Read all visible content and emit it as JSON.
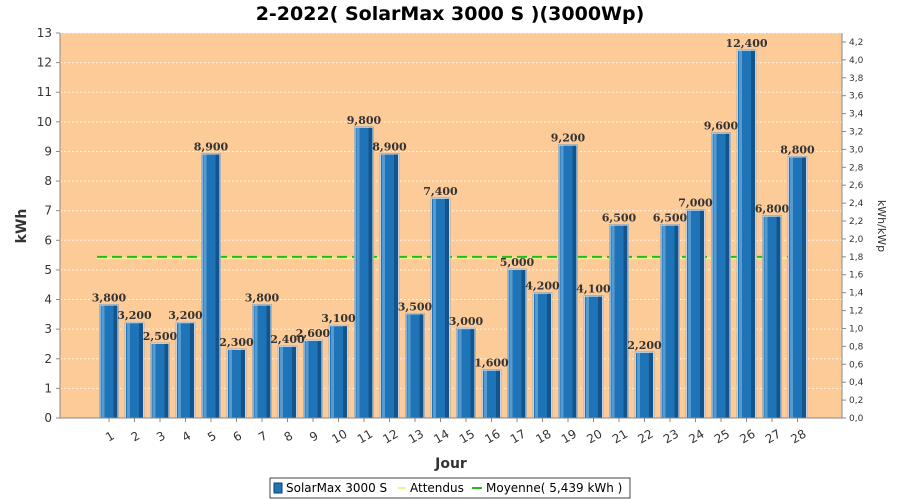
{
  "chart_data": {
    "type": "bar",
    "title": "2-2022( SolarMax 3000 S )(3000Wp)",
    "xlabel": "Jour",
    "ylabel": "kWh",
    "ylabel_right": "kWh/kWp",
    "ylim": [
      0,
      13
    ],
    "ylim_right": [
      0,
      4.3
    ],
    "yticks": [
      "0",
      "1",
      "2",
      "3",
      "4",
      "5",
      "6",
      "7",
      "8",
      "9",
      "10",
      "11",
      "12",
      "13"
    ],
    "yticks_right": [
      "0,0",
      "0,2",
      "0,4",
      "0,6",
      "0,8",
      "1,0",
      "1,2",
      "1,4",
      "1,6",
      "1,8",
      "2,0",
      "2,2",
      "2,4",
      "2,6",
      "2,8",
      "3,0",
      "3,2",
      "3,4",
      "3,6",
      "3,8",
      "4,0",
      "4,2"
    ],
    "categories": [
      "1",
      "2",
      "3",
      "4",
      "5",
      "6",
      "7",
      "8",
      "9",
      "10",
      "11",
      "12",
      "13",
      "14",
      "15",
      "16",
      "17",
      "18",
      "19",
      "20",
      "21",
      "22",
      "23",
      "24",
      "25",
      "26",
      "27",
      "28"
    ],
    "series": [
      {
        "name": "SolarMax 3000 S",
        "values": [
          3.8,
          3.2,
          2.5,
          3.2,
          8.9,
          2.3,
          3.8,
          2.4,
          2.6,
          3.1,
          9.8,
          8.9,
          3.5,
          7.4,
          3.0,
          1.6,
          5.0,
          4.2,
          9.2,
          4.1,
          6.5,
          2.2,
          6.5,
          7.0,
          9.6,
          12.4,
          6.8,
          8.8
        ],
        "labels": [
          "3,800",
          "3,200",
          "2,500",
          "3,200",
          "8,900",
          "2,300",
          "3,800",
          "2,400",
          "2,600",
          "3,100",
          "9,800",
          "8,900",
          "3,500",
          "7,400",
          "3,000",
          "1,600",
          "5,000",
          "4,200",
          "9,200",
          "4,100",
          "6,500",
          "2,200",
          "6,500",
          "7,000",
          "9,600",
          "12,400",
          "6,800",
          "8,800"
        ]
      }
    ],
    "expected": {
      "name": "Attendus",
      "value": 5.4
    },
    "average": {
      "name": "Moyenne( 5,439 kWh )",
      "value": 5.439
    },
    "legend": [
      "SolarMax 3000 S",
      "Attendus",
      "Moyenne( 5,439 kWh )"
    ],
    "legend_position": "bottom",
    "grid": true,
    "colors": {
      "plot_bg": "#fdcb97",
      "bar": "#1f74b8",
      "bar_dark": "#0c3f6e",
      "bar_light": "#79b4e1",
      "expected_line": "#f2f28a",
      "average_line": "#22bb22"
    }
  }
}
